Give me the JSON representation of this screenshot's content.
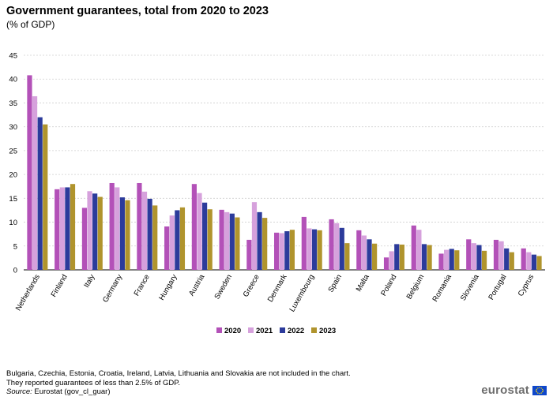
{
  "header": {
    "title": "Government guarantees, total from 2020 to 2023",
    "subtitle": "(% of GDP)"
  },
  "chart_data": {
    "type": "bar",
    "categories": [
      "Netherlands",
      "Finland",
      "Italy",
      "Germany",
      "France",
      "Hungary",
      "Austria",
      "Sweden",
      "Greece",
      "Denmark",
      "Luxembourg",
      "Spain",
      "Malta",
      "Poland",
      "Belgium",
      "Romania",
      "Slovenia",
      "Portugal",
      "Cyprus"
    ],
    "series": [
      {
        "name": "2020",
        "color": "#b351b8",
        "values": [
          40.8,
          16.9,
          13.0,
          18.2,
          18.2,
          9.1,
          18.0,
          12.6,
          6.3,
          7.8,
          11.1,
          10.6,
          8.3,
          2.6,
          9.3,
          3.4,
          6.4,
          6.3,
          4.5
        ]
      },
      {
        "name": "2021",
        "color": "#d6a1dc",
        "values": [
          36.4,
          17.3,
          16.5,
          17.3,
          16.4,
          11.4,
          16.1,
          12.1,
          14.2,
          7.7,
          8.7,
          9.8,
          7.2,
          3.9,
          8.4,
          4.2,
          5.6,
          6.0,
          3.7
        ]
      },
      {
        "name": "2022",
        "color": "#2c3b9b",
        "values": [
          32.0,
          17.3,
          16.0,
          15.2,
          14.9,
          12.5,
          14.1,
          11.8,
          12.1,
          8.1,
          8.5,
          8.8,
          6.4,
          5.4,
          5.4,
          4.4,
          5.2,
          4.5,
          3.2
        ]
      },
      {
        "name": "2023",
        "color": "#b0942d",
        "values": [
          30.5,
          18.0,
          15.3,
          14.6,
          13.5,
          13.1,
          12.7,
          11.0,
          10.9,
          8.4,
          8.3,
          5.6,
          5.5,
          5.3,
          5.2,
          4.1,
          4.0,
          3.7,
          2.9
        ]
      }
    ],
    "yticks": [
      0,
      5,
      10,
      15,
      20,
      25,
      30,
      35,
      40,
      45
    ],
    "ylim": [
      0,
      45
    ],
    "xlabel": "",
    "ylabel": "",
    "grid": true,
    "legend_position": "bottom-center"
  },
  "footnotes": {
    "line1": "Bulgaria, Czechia, Estonia, Croatia, Ireland, Latvia, Lithuania and Slovakia are not included in the chart.",
    "line2": "They reported guarantees of less than 2.5% of GDP.",
    "source_label": "Source:",
    "source_text": " Eurostat (gov_cl_guar)"
  },
  "branding": {
    "logo_text": "eurostat",
    "flag_icon": "eu-flag-icon"
  }
}
